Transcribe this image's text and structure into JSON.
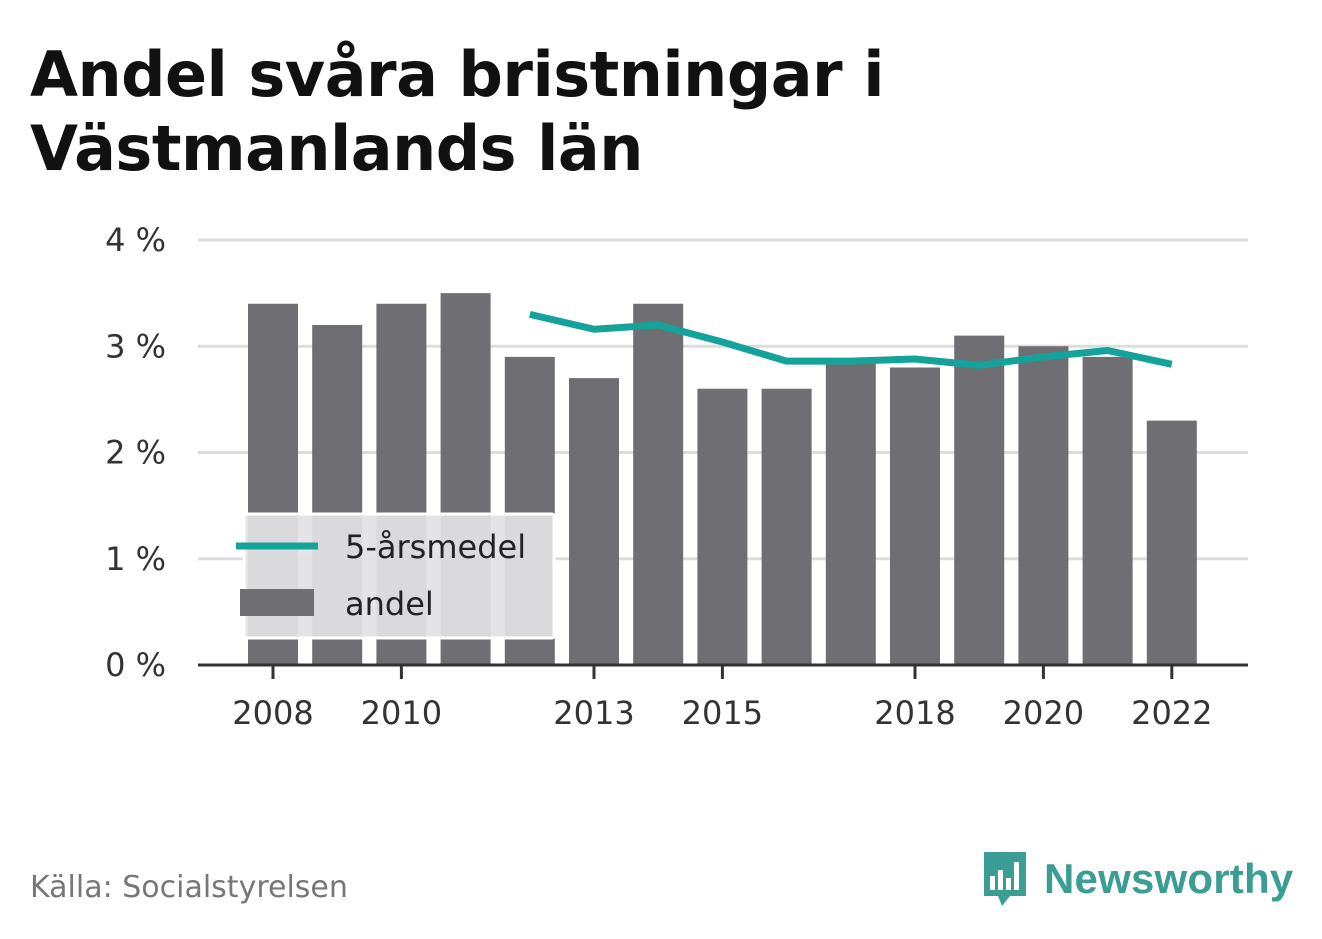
{
  "title": "Andel svåra bristningar i Västmanlands län",
  "source": "Källa: Socialstyrelsen",
  "brand": {
    "name": "Newsworthy",
    "icon": "newsworthy-logo-icon",
    "color": "#3a9e94"
  },
  "colors": {
    "bar": "#6f6e73",
    "line": "#14a39a",
    "grid": "#dddddd",
    "axis": "#333333",
    "legend_bg": "#e2e2e4"
  },
  "chart_data": {
    "type": "bar",
    "title": "Andel svåra bristningar i Västmanlands län",
    "xlabel": "",
    "ylabel": "",
    "ylim": [
      0,
      4
    ],
    "y_ticks": [
      "0 %",
      "1 %",
      "2 %",
      "3 %",
      "4 %"
    ],
    "x_ticks": [
      "2008",
      "2010",
      "2013",
      "2015",
      "2018",
      "2020",
      "2022"
    ],
    "grid": true,
    "legend_position": "bottom-left",
    "categories": [
      2008,
      2009,
      2010,
      2011,
      2012,
      2013,
      2014,
      2015,
      2016,
      2017,
      2018,
      2019,
      2020,
      2021,
      2022
    ],
    "series": [
      {
        "name": "andel",
        "type": "bar",
        "values": [
          3.4,
          3.2,
          3.4,
          3.5,
          2.9,
          2.7,
          3.4,
          2.6,
          2.6,
          2.85,
          2.8,
          3.1,
          3.0,
          2.9,
          2.3
        ]
      },
      {
        "name": "5-årsmedel",
        "type": "line",
        "values": [
          null,
          null,
          null,
          null,
          3.3,
          3.16,
          3.2,
          3.04,
          2.86,
          2.86,
          2.88,
          2.82,
          2.9,
          2.96,
          2.83
        ]
      }
    ]
  }
}
